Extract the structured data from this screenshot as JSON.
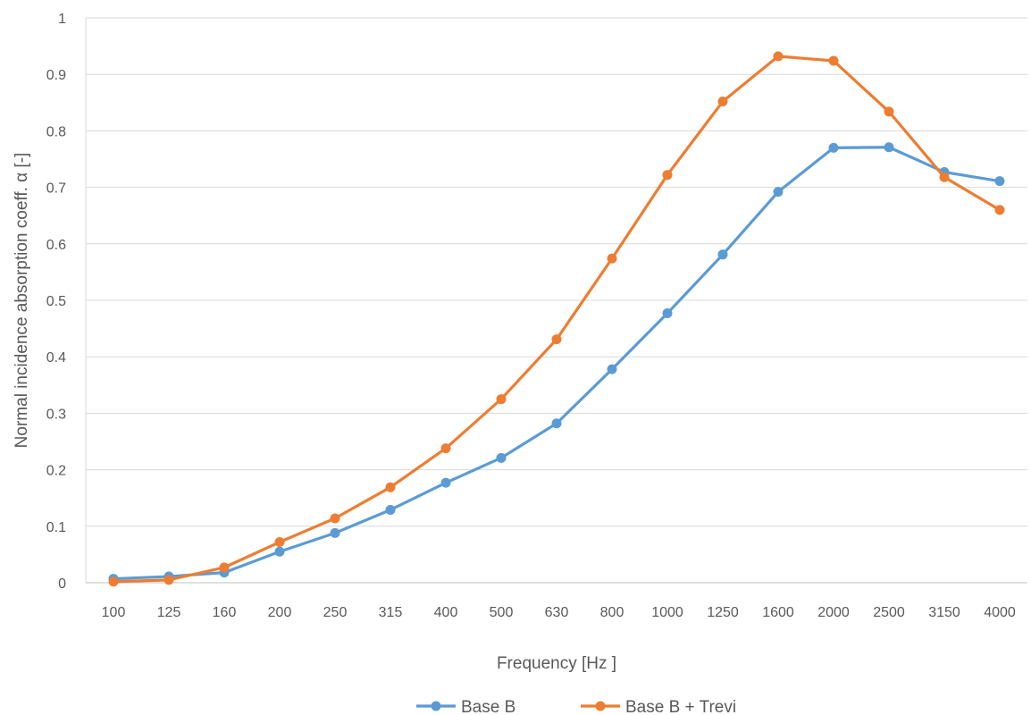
{
  "chart_data": {
    "type": "line",
    "title": "",
    "xlabel": "Frequency [Hz ]",
    "ylabel": "Normal incidence absorption coeff. α [-]",
    "categories": [
      "100",
      "125",
      "160",
      "200",
      "250",
      "315",
      "400",
      "500",
      "630",
      "800",
      "1000",
      "1250",
      "1600",
      "2000",
      "2500",
      "3150",
      "4000"
    ],
    "ylim": [
      0,
      1
    ],
    "yticks": [
      "0",
      "0.1",
      "0.2",
      "0.3",
      "0.4",
      "0.5",
      "0.6",
      "0.7",
      "0.8",
      "0.9",
      "1"
    ],
    "grid": "horizontal",
    "legend_position": "bottom",
    "series": [
      {
        "name": "Base B",
        "color": "#5B9BD5",
        "values": [
          0.007,
          0.011,
          0.018,
          0.055,
          0.088,
          0.129,
          0.177,
          0.221,
          0.282,
          0.378,
          0.477,
          0.581,
          0.692,
          0.77,
          0.771,
          0.727,
          0.711
        ]
      },
      {
        "name": "Base B + Trevi",
        "color": "#ED7D31",
        "values": [
          0.002,
          0.005,
          0.027,
          0.072,
          0.114,
          0.169,
          0.238,
          0.325,
          0.431,
          0.574,
          0.722,
          0.852,
          0.932,
          0.924,
          0.834,
          0.718,
          0.66
        ]
      }
    ]
  }
}
